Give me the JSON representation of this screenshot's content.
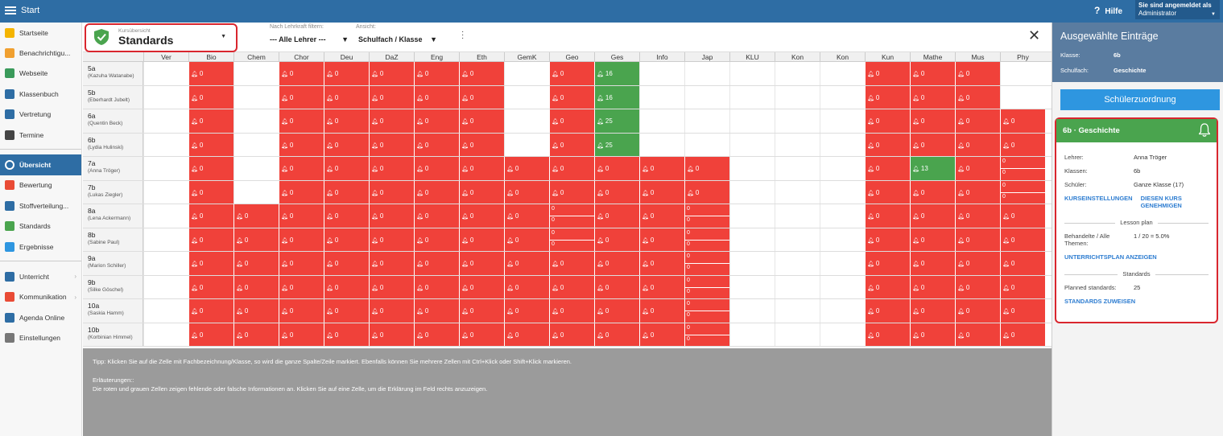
{
  "topbar": {
    "start": "Start",
    "help": "Hilfe",
    "user_line1": "Sie sind angemeldet als",
    "user_line2": "Administrator"
  },
  "sidebar": {
    "items": [
      {
        "label": "Startseite",
        "icon": "star-icon",
        "color": "#f4b400"
      },
      {
        "label": "Benachrichtigu...",
        "icon": "envelope-icon",
        "color": "#f0a030"
      },
      {
        "label": "Webseite",
        "icon": "home-icon",
        "color": "#3a9a5a"
      },
      {
        "label": "Klassenbuch",
        "icon": "book-icon",
        "color": "#2e6da4"
      },
      {
        "label": "Vertretung",
        "icon": "swap-icon",
        "color": "#2e6da4"
      },
      {
        "label": "Termine",
        "icon": "calendar-icon",
        "color": "#444"
      }
    ],
    "items2": [
      {
        "label": "Übersicht",
        "icon": "check-circle-icon",
        "color": "#ffffff",
        "active": true
      },
      {
        "label": "Bewertung",
        "icon": "grade-icon",
        "color": "#e94b35"
      },
      {
        "label": "Stoffverteilung...",
        "icon": "layers-icon",
        "color": "#2e6da4"
      },
      {
        "label": "Standards",
        "icon": "shield-icon",
        "color": "#4aa44e"
      },
      {
        "label": "Ergebnisse",
        "icon": "bar-chart-icon",
        "color": "#2e96e0"
      }
    ],
    "items3": [
      {
        "label": "Unterricht",
        "icon": "desk-icon",
        "color": "#2e6da4",
        "chevron": true
      },
      {
        "label": "Kommunikation",
        "icon": "chat-icon",
        "color": "#e94b35",
        "chevron": true
      },
      {
        "label": "Agenda Online",
        "icon": "pen-icon",
        "color": "#2e6da4"
      },
      {
        "label": "Einstellungen",
        "icon": "gear-icon",
        "color": "#777"
      }
    ]
  },
  "header": {
    "selector_small": "Kursübersicht",
    "selector_big": "Standards",
    "filter1_label": "Nach Lehrkraft filtern:",
    "filter1_value": "--- Alle Lehrer ---",
    "filter2_label": "Ansicht:",
    "filter2_value": "Schulfach / Klasse"
  },
  "grid": {
    "subjects": [
      "Ver",
      "Bio",
      "Chem",
      "Chor",
      "Deu",
      "DaZ",
      "Eng",
      "Eth",
      "GemK",
      "Geo",
      "Ges",
      "Info",
      "Jap",
      "KLU",
      "Kon",
      "Kon",
      "Kun",
      "Mathe",
      "Mus",
      "Phy"
    ],
    "rows": [
      {
        "cls": "5a",
        "teacher": "(Kazuha Watanabe)",
        "cells": [
          "w",
          "r:0",
          "w",
          "r:0",
          "r:0",
          "r:0",
          "r:0",
          "r:0",
          "w",
          "r:0",
          "g:16",
          "w",
          "w",
          "w",
          "w",
          "w",
          "r:0",
          "r:0",
          "r:0",
          "w"
        ]
      },
      {
        "cls": "5b",
        "teacher": "(Eberhardt Jubelt)",
        "cells": [
          "w",
          "r:0",
          "w",
          "r:0",
          "r:0",
          "r:0",
          "r:0",
          "r:0",
          "w",
          "r:0",
          "g:16",
          "w",
          "w",
          "w",
          "w",
          "w",
          "r:0",
          "r:0",
          "r:0",
          "w"
        ]
      },
      {
        "cls": "6a",
        "teacher": "(Quentin Beck)",
        "cells": [
          "w",
          "r:0",
          "w",
          "r:0",
          "r:0",
          "r:0",
          "r:0",
          "r:0",
          "w",
          "r:0",
          "g:25",
          "w",
          "w",
          "w",
          "w",
          "w",
          "r:0",
          "r:0",
          "r:0",
          "r:0"
        ]
      },
      {
        "cls": "6b",
        "teacher": "(Lydia Hulinski)",
        "cells": [
          "w",
          "r:0",
          "w",
          "r:0",
          "r:0",
          "r:0",
          "r:0",
          "r:0",
          "w",
          "r:0",
          "g:25",
          "w",
          "w",
          "w",
          "w",
          "w",
          "r:0",
          "r:0",
          "r:0",
          "r:0"
        ]
      },
      {
        "cls": "7a",
        "teacher": "(Anna Tröger)",
        "cells": [
          "w",
          "r:0",
          "w",
          "r:0",
          "r:0",
          "r:0",
          "r:0",
          "r:0",
          "r:0",
          "r:0",
          "r:0",
          "r:0",
          "r:0",
          "w",
          "w",
          "w",
          "r:0",
          "g:13",
          "r:0",
          "s:0|0"
        ]
      },
      {
        "cls": "7b",
        "teacher": "(Lukas Ziegler)",
        "cells": [
          "w",
          "r:0",
          "w",
          "r:0",
          "r:0",
          "r:0",
          "r:0",
          "r:0",
          "r:0",
          "r:0",
          "r:0",
          "r:0",
          "r:0",
          "w",
          "w",
          "w",
          "r:0",
          "r:0",
          "r:0",
          "s:0|0"
        ]
      },
      {
        "cls": "8a",
        "teacher": "(Lena Ackermann)",
        "cells": [
          "w",
          "r:0",
          "r:0",
          "r:0",
          "r:0",
          "r:0",
          "r:0",
          "r:0",
          "r:0",
          "s:0|0",
          "r:0",
          "r:0",
          "s:0|0",
          "w",
          "w",
          "w",
          "r:0",
          "r:0",
          "r:0",
          "r:0"
        ]
      },
      {
        "cls": "8b",
        "teacher": "(Sabine Paul)",
        "cells": [
          "w",
          "r:0",
          "r:0",
          "r:0",
          "r:0",
          "r:0",
          "r:0",
          "r:0",
          "r:0",
          "s:0|0",
          "r:0",
          "r:0",
          "s:0|0",
          "w",
          "w",
          "w",
          "r:0",
          "r:0",
          "r:0",
          "r:0"
        ]
      },
      {
        "cls": "9a",
        "teacher": "(Marion Schiller)",
        "cells": [
          "w",
          "r:0",
          "r:0",
          "r:0",
          "r:0",
          "r:0",
          "r:0",
          "r:0",
          "r:0",
          "r:0",
          "r:0",
          "r:0",
          "s:0|0",
          "w",
          "w",
          "w",
          "r:0",
          "r:0",
          "r:0",
          "r:0"
        ]
      },
      {
        "cls": "9b",
        "teacher": "(Silke Göschel)",
        "cells": [
          "w",
          "r:0",
          "r:0",
          "r:0",
          "r:0",
          "r:0",
          "r:0",
          "r:0",
          "r:0",
          "r:0",
          "r:0",
          "r:0",
          "s:0|0",
          "w",
          "w",
          "w",
          "r:0",
          "r:0",
          "r:0",
          "r:0"
        ]
      },
      {
        "cls": "10a",
        "teacher": "(Saskia Hamm)",
        "cells": [
          "w",
          "r:0",
          "r:0",
          "r:0",
          "r:0",
          "r:0",
          "r:0",
          "r:0",
          "r:0",
          "r:0",
          "r:0",
          "r:0",
          "s:0|0",
          "w",
          "w",
          "w",
          "r:0",
          "r:0",
          "r:0",
          "r:0"
        ]
      },
      {
        "cls": "10b",
        "teacher": "(Korbinian Himmel)",
        "cells": [
          "w",
          "r:0",
          "r:0",
          "r:0",
          "r:0",
          "r:0",
          "r:0",
          "r:0",
          "r:0",
          "r:0",
          "r:0",
          "r:0",
          "s:0|0",
          "w",
          "w",
          "w",
          "r:0",
          "r:0",
          "r:0",
          "r:0"
        ]
      }
    ]
  },
  "footer": {
    "tip": "Tipp: Klicken Sie auf die Zelle mit Fachbezeichnung/Klasse, so wird die ganze Spalte/Zeile markiert. Ebenfalls können Sie mehrere Zellen mit Ctrl+Klick oder Shift+Klick markieren.",
    "expl_title": "Erläuterungen::",
    "expl_text": "Die roten und grauen Zellen zeigen fehlende oder falsche Informationen an. Klicken Sie auf eine Zelle, um die Erklärung im Feld rechts anzuzeigen."
  },
  "right": {
    "title": "Ausgewählte Einträge",
    "klasse_k": "Klasse:",
    "klasse_v": "6b",
    "fach_k": "Schulfach:",
    "fach_v": "Geschichte",
    "button": "Schülerzuordnung",
    "card_title": "6b · Geschichte",
    "lehrer_k": "Lehrer:",
    "lehrer_v": "Anna Tröger",
    "klassen_k": "Klassen:",
    "klassen_v": "6b",
    "schueler_k": "Schüler:",
    "schueler_v": "Ganze Klasse (17)",
    "link1": "KURSEINSTELLUNGEN",
    "link2": "DIESEN KURS GENEHMIGEN",
    "lesson_plan": "Lesson plan",
    "themen_k": "Behandelte / Alle Themen:",
    "themen_v": "1 / 20 = 5.0%",
    "link3": "UNTERRICHTSPLAN ANZEIGEN",
    "standards_lbl": "Standards",
    "planned_k": "Planned standards:",
    "planned_v": "25",
    "link4": "STANDARDS ZUWEISEN"
  }
}
